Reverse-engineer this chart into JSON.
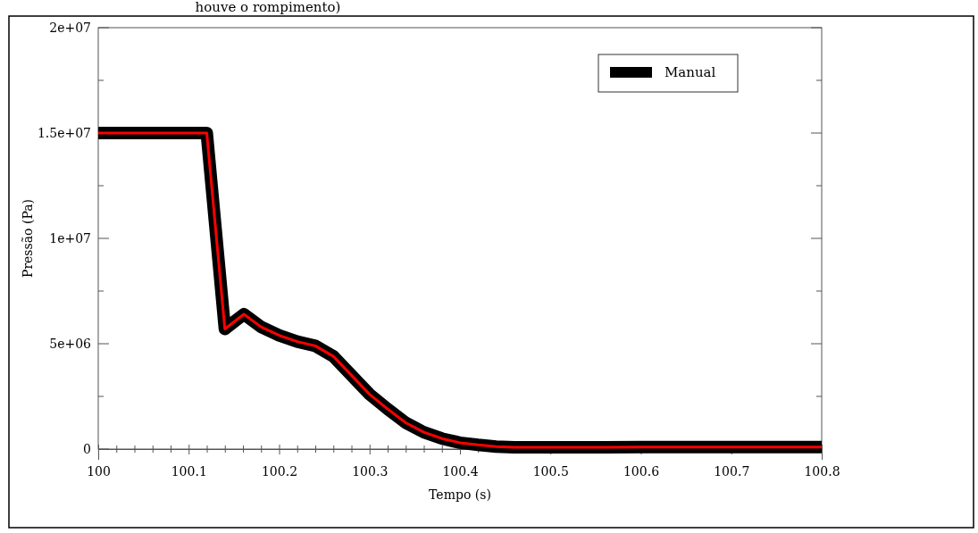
{
  "chart_data": {
    "type": "line",
    "annotations": [
      "houve o rompimento)"
    ],
    "xlabel": "Tempo (s)",
    "ylabel": "Pressão (Pa)",
    "x": [
      100,
      100.12,
      100.14,
      100.161,
      100.18,
      100.2,
      100.22,
      100.24,
      100.26,
      100.28,
      100.3,
      100.32,
      100.34,
      100.36,
      100.38,
      100.4,
      100.42,
      100.44,
      100.46,
      100.5,
      100.56,
      100.6,
      100.7,
      100.8
    ],
    "series": [
      {
        "name": "Manual",
        "color": "#000000",
        "values": [
          15000000,
          15000000,
          5700000,
          6400000,
          5800000,
          5400000,
          5100000,
          4900000,
          4400000,
          3500000,
          2600000,
          1900000,
          1250000,
          800000,
          500000,
          300000,
          200000,
          120000,
          80000,
          90000,
          80000,
          100000,
          100000,
          100000
        ]
      },
      {
        "color": "#ff0000",
        "values": [
          15000000,
          15000000,
          5700000,
          6400000,
          5800000,
          5400000,
          5100000,
          4900000,
          4400000,
          3500000,
          2600000,
          1900000,
          1250000,
          800000,
          500000,
          300000,
          200000,
          120000,
          80000,
          90000,
          80000,
          100000,
          100000,
          100000
        ]
      }
    ],
    "xlim": [
      100,
      100.8
    ],
    "xticks": [
      100,
      {
        "value": 100.02,
        "label": null
      },
      {
        "value": 100.04,
        "label": null
      },
      {
        "value": 100.06,
        "label": null
      },
      {
        "value": 100.08,
        "label": null
      },
      100.1,
      {
        "value": 100.12,
        "label": null
      },
      {
        "value": 100.14,
        "label": null
      },
      {
        "value": 100.16,
        "label": null
      },
      {
        "value": 100.18,
        "label": null
      },
      100.2,
      {
        "value": 100.22,
        "label": null
      },
      {
        "value": 100.24,
        "label": null
      },
      {
        "value": 100.26,
        "label": null
      },
      {
        "value": 100.28,
        "label": null
      },
      100.3,
      {
        "value": 100.32,
        "label": null
      },
      {
        "value": 100.34,
        "label": null
      },
      {
        "value": 100.36,
        "label": null
      },
      {
        "value": 100.38,
        "label": null
      },
      100.4,
      {
        "value": 100.42,
        "label": null
      },
      {
        "value": 100.44,
        "label": null
      },
      {
        "value": 100.46,
        "label": null
      },
      {
        "value": 100.48,
        "label": null
      },
      100.5,
      {
        "value": 100.52,
        "label": null
      },
      {
        "value": 100.54,
        "label": null
      },
      {
        "value": 100.56,
        "label": null
      },
      {
        "value": 100.58,
        "label": null
      },
      100.6,
      {
        "value": 100.62,
        "label": null
      },
      {
        "value": 100.64,
        "label": null
      },
      {
        "value": 100.66,
        "label": null
      },
      {
        "value": 100.68,
        "label": null
      },
      100.7,
      {
        "value": 100.72,
        "label": null
      },
      {
        "value": 100.74,
        "label": null
      },
      {
        "value": 100.76,
        "label": null
      },
      {
        "value": 100.78,
        "label": null
      },
      100.8
    ],
    "ylim": [
      0,
      20000000
    ],
    "yticks": [
      {
        "value": 0,
        "label": "0"
      },
      {
        "value": 2500000,
        "label": null
      },
      {
        "value": 5000000,
        "label": "5e+06"
      },
      {
        "value": 7500000,
        "label": null
      },
      {
        "value": 10000000,
        "label": "1e+07"
      },
      {
        "value": 12500000,
        "label": null
      },
      {
        "value": 15000000,
        "label": "1.5e+07"
      },
      {
        "value": 17500000,
        "label": null
      },
      {
        "value": 20000000,
        "label": "2e+07"
      }
    ],
    "grid": false,
    "legend": "top right",
    "line_style": "solid"
  }
}
